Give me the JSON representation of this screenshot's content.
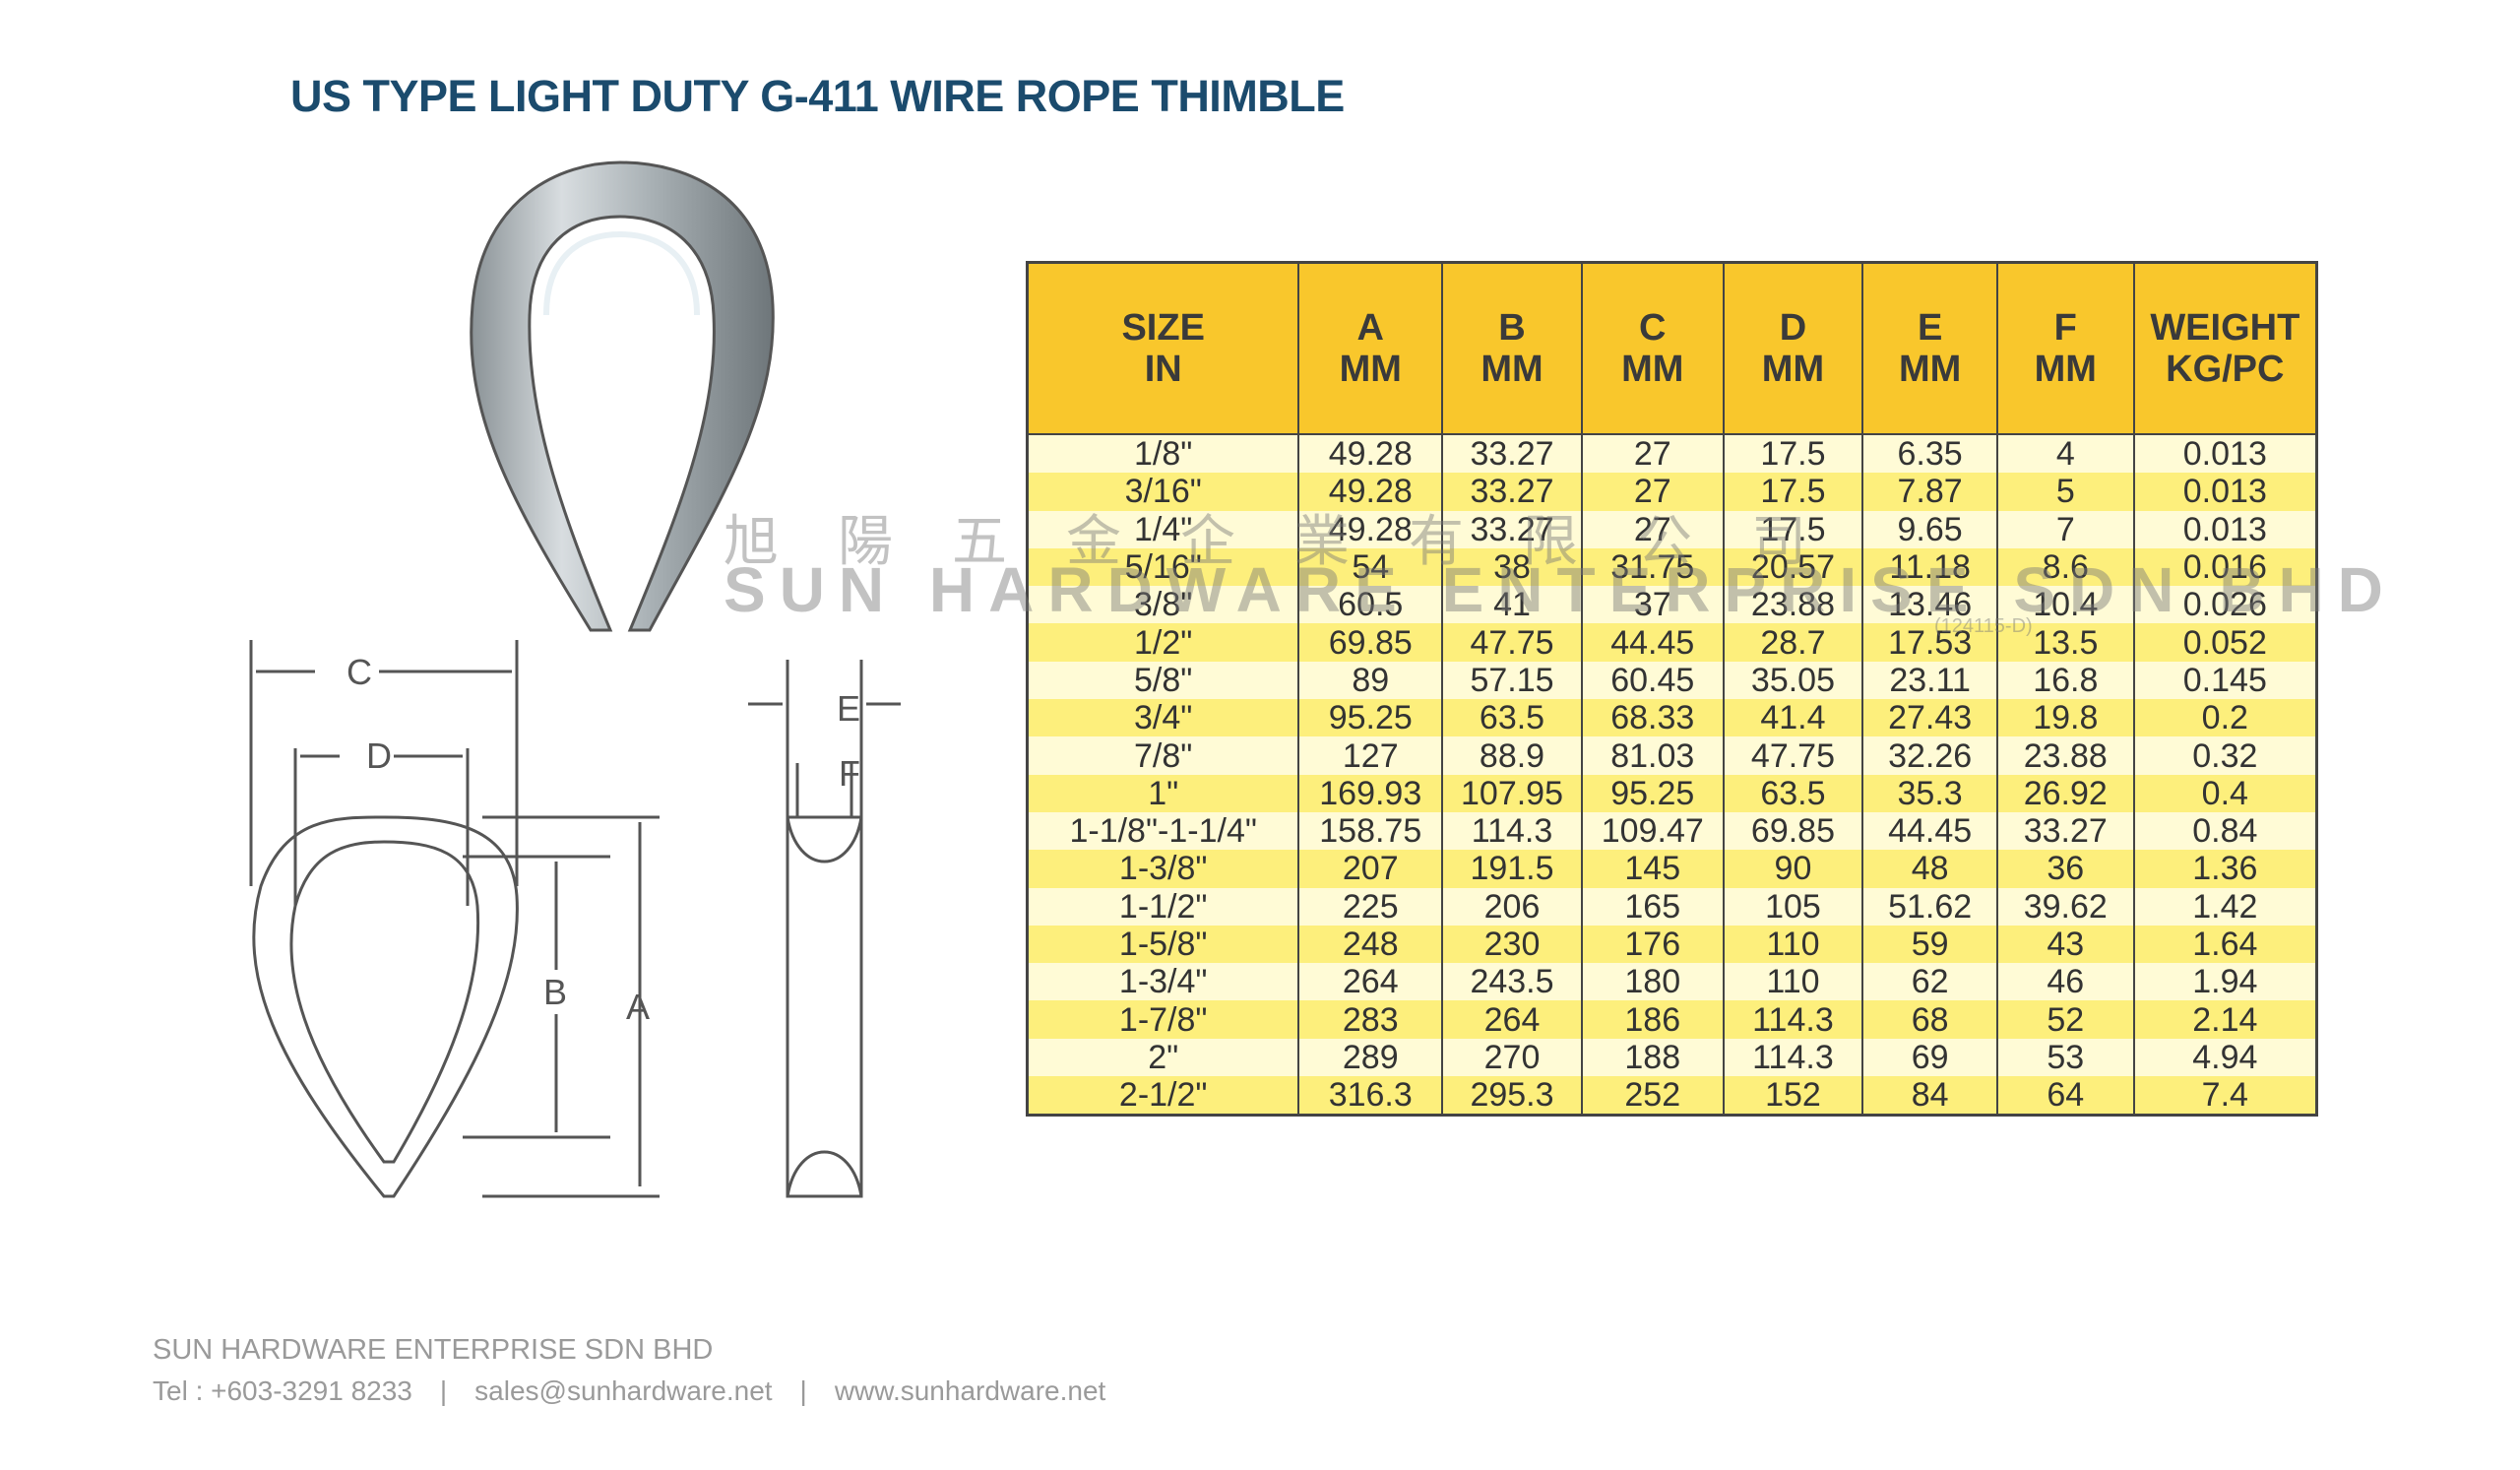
{
  "title": "US TYPE LIGHT DUTY G-411 WIRE ROPE THIMBLE",
  "diagram_labels": {
    "a": "A",
    "b": "B",
    "c": "C",
    "d": "D",
    "e": "E",
    "f": "F"
  },
  "watermark": {
    "chinese": "旭陽五金企業有限公司",
    "english": "SUN HARDWARE ENTERPRISE SDN BHD",
    "reg": "(124115-D)"
  },
  "table": {
    "headers": [
      [
        "SIZE",
        "IN"
      ],
      [
        "A",
        "MM"
      ],
      [
        "B",
        "MM"
      ],
      [
        "C",
        "MM"
      ],
      [
        "D",
        "MM"
      ],
      [
        "E",
        "MM"
      ],
      [
        "F",
        "MM"
      ],
      [
        "WEIGHT",
        "KG/PC"
      ]
    ],
    "rows": [
      [
        "1/8\"",
        "49.28",
        "33.27",
        "27",
        "17.5",
        "6.35",
        "4",
        "0.013"
      ],
      [
        "3/16\"",
        "49.28",
        "33.27",
        "27",
        "17.5",
        "7.87",
        "5",
        "0.013"
      ],
      [
        "1/4\"",
        "49.28",
        "33.27",
        "27",
        "17.5",
        "9.65",
        "7",
        "0.013"
      ],
      [
        "5/16\"",
        "54",
        "38",
        "31.75",
        "20.57",
        "11.18",
        "8.6",
        "0.016"
      ],
      [
        "3/8\"",
        "60.5",
        "41",
        "37",
        "23.88",
        "13.46",
        "10.4",
        "0.026"
      ],
      [
        "1/2\"",
        "69.85",
        "47.75",
        "44.45",
        "28.7",
        "17.53",
        "13.5",
        "0.052"
      ],
      [
        "5/8\"",
        "89",
        "57.15",
        "60.45",
        "35.05",
        "23.11",
        "16.8",
        "0.145"
      ],
      [
        "3/4\"",
        "95.25",
        "63.5",
        "68.33",
        "41.4",
        "27.43",
        "19.8",
        "0.2"
      ],
      [
        "7/8\"",
        "127",
        "88.9",
        "81.03",
        "47.75",
        "32.26",
        "23.88",
        "0.32"
      ],
      [
        "1\"",
        "169.93",
        "107.95",
        "95.25",
        "63.5",
        "35.3",
        "26.92",
        "0.4"
      ],
      [
        "1-1/8\"-1-1/4\"",
        "158.75",
        "114.3",
        "109.47",
        "69.85",
        "44.45",
        "33.27",
        "0.84"
      ],
      [
        "1-3/8\"",
        "207",
        "191.5",
        "145",
        "90",
        "48",
        "36",
        "1.36"
      ],
      [
        "1-1/2\"",
        "225",
        "206",
        "165",
        "105",
        "51.62",
        "39.62",
        "1.42"
      ],
      [
        "1-5/8\"",
        "248",
        "230",
        "176",
        "110",
        "59",
        "43",
        "1.64"
      ],
      [
        "1-3/4\"",
        "264",
        "243.5",
        "180",
        "110",
        "62",
        "46",
        "1.94"
      ],
      [
        "1-7/8\"",
        "283",
        "264",
        "186",
        "114.3",
        "68",
        "52",
        "2.14"
      ],
      [
        "2\"",
        "289",
        "270",
        "188",
        "114.3",
        "69",
        "53",
        "4.94"
      ],
      [
        "2-1/2\"",
        "316.3",
        "295.3",
        "252",
        "152",
        "84",
        "64",
        "7.4"
      ]
    ]
  },
  "footer": {
    "company": "SUN HARDWARE ENTERPRISE SDN BHD",
    "tel": "Tel : +603-3291 8233",
    "email": "sales@sunhardware.net",
    "website": "www.sunhardware.net",
    "separator": "|"
  }
}
